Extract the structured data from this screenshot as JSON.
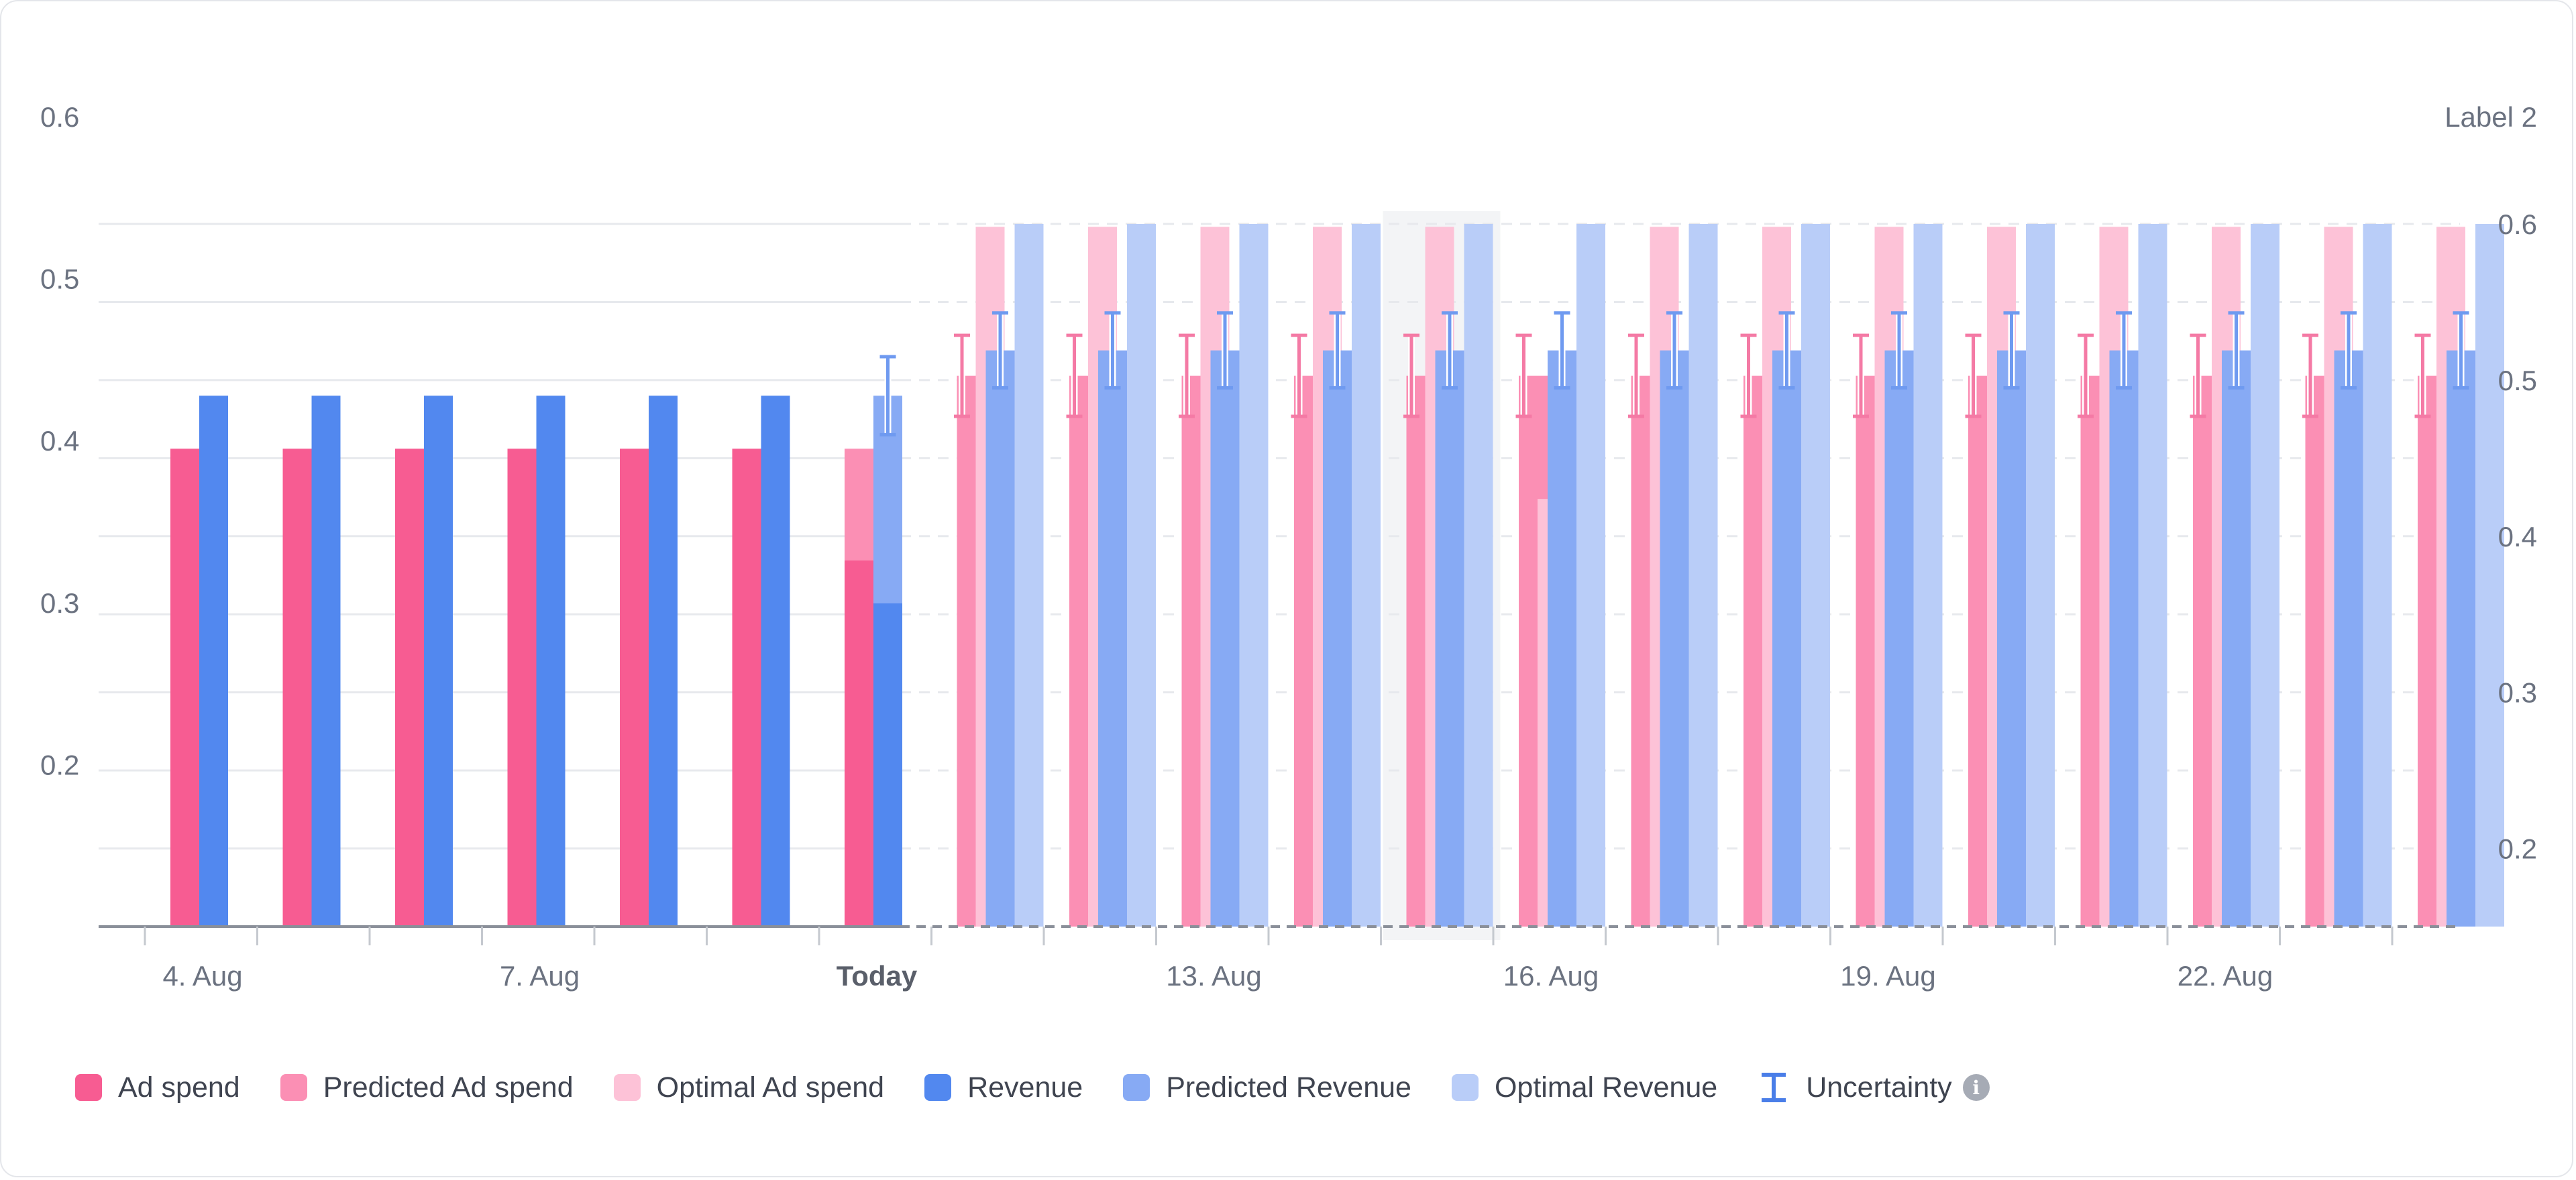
{
  "chart_data": {
    "type": "bar",
    "categories": [
      "4. Aug",
      "5. Aug",
      "6. Aug",
      "7. Aug",
      "8. Aug",
      "9. Aug",
      "Today",
      "11. Aug",
      "12. Aug",
      "13. Aug",
      "14. Aug",
      "15. Aug",
      "16. Aug",
      "17. Aug",
      "18. Aug",
      "19. Aug",
      "20. Aug",
      "21. Aug",
      "22. Aug",
      "23. Aug",
      "24. Aug"
    ],
    "x_tick_labels": [
      "4. Aug",
      "7. Aug",
      "Today",
      "13. Aug",
      "16. Aug",
      "19. Aug",
      "22. Aug"
    ],
    "today_index": 6,
    "highlight_index": 11,
    "y_left": {
      "ticks": [
        "0.6",
        "0.5",
        "0.4",
        "0.3",
        "0.2"
      ],
      "range": [
        0.1,
        0.6
      ]
    },
    "y_right": {
      "label": "Label 2",
      "ticks": [
        "0.6",
        "0.5",
        "0.4",
        "0.3",
        "0.2"
      ],
      "range": [
        0.15,
        0.6
      ]
    },
    "series": [
      {
        "name": "Ad spend",
        "axis": "left",
        "color": "#f75c92",
        "values": [
          0.395,
          0.395,
          0.395,
          0.395,
          0.395,
          0.395,
          0.326,
          null,
          null,
          null,
          null,
          null,
          null,
          null,
          null,
          null,
          null,
          null,
          null,
          null,
          null
        ]
      },
      {
        "name": "Predicted Ad spend",
        "axis": "left",
        "color": "#fb8fb4",
        "values": [
          null,
          null,
          null,
          null,
          null,
          null,
          0.395,
          0.44,
          0.44,
          0.44,
          0.44,
          0.44,
          0.44,
          0.44,
          0.44,
          0.44,
          0.44,
          0.44,
          0.44,
          0.44,
          0.44
        ],
        "uncertainty": [
          null,
          null,
          null,
          null,
          null,
          null,
          null,
          [
            0.415,
            0.465
          ],
          [
            0.415,
            0.465
          ],
          [
            0.415,
            0.465
          ],
          [
            0.415,
            0.465
          ],
          [
            0.415,
            0.465
          ],
          [
            0.415,
            0.465
          ],
          [
            0.415,
            0.465
          ],
          [
            0.415,
            0.465
          ],
          [
            0.415,
            0.465
          ],
          [
            0.415,
            0.465
          ],
          [
            0.415,
            0.465
          ],
          [
            0.415,
            0.465
          ],
          [
            0.415,
            0.465
          ],
          [
            0.415,
            0.465
          ]
        ]
      },
      {
        "name": "Optimal Ad spend",
        "axis": "left",
        "color": "#fdc2d7",
        "values": [
          null,
          null,
          null,
          null,
          null,
          null,
          null,
          0.532,
          0.532,
          0.532,
          0.532,
          0.532,
          0.364,
          0.532,
          0.532,
          0.532,
          0.532,
          0.532,
          0.532,
          0.532,
          0.532
        ]
      },
      {
        "name": "Revenue",
        "axis": "right",
        "color": "#5288ef",
        "values": [
          0.49,
          0.49,
          0.49,
          0.49,
          0.49,
          0.49,
          0.357,
          null,
          null,
          null,
          null,
          null,
          null,
          null,
          null,
          null,
          null,
          null,
          null,
          null,
          null
        ]
      },
      {
        "name": "Predicted Revenue",
        "axis": "right",
        "color": "#87aaf4",
        "values": [
          null,
          null,
          null,
          null,
          null,
          null,
          0.49,
          0.519,
          0.519,
          0.519,
          0.519,
          0.519,
          0.519,
          0.519,
          0.519,
          0.519,
          0.519,
          0.519,
          0.519,
          0.519,
          0.519
        ],
        "uncertainty": [
          null,
          null,
          null,
          null,
          null,
          null,
          [
            0.465,
            0.515
          ],
          [
            0.495,
            0.543
          ],
          [
            0.495,
            0.543
          ],
          [
            0.495,
            0.543
          ],
          [
            0.495,
            0.543
          ],
          [
            0.495,
            0.543
          ],
          [
            0.495,
            0.543
          ],
          [
            0.495,
            0.543
          ],
          [
            0.495,
            0.543
          ],
          [
            0.495,
            0.543
          ],
          [
            0.495,
            0.543
          ],
          [
            0.495,
            0.543
          ],
          [
            0.495,
            0.543
          ],
          [
            0.495,
            0.543
          ],
          [
            0.495,
            0.543
          ]
        ]
      },
      {
        "name": "Optimal Revenue",
        "axis": "right",
        "color": "#b9cdf8",
        "values": [
          null,
          null,
          null,
          null,
          null,
          null,
          null,
          0.6,
          0.6,
          0.6,
          0.6,
          0.6,
          0.6,
          0.6,
          0.6,
          0.6,
          0.6,
          0.6,
          0.6,
          0.6,
          0.6
        ]
      }
    ],
    "grid": true,
    "legend_position": "bottom"
  },
  "legend": {
    "items": [
      {
        "label": "Ad spend",
        "color": "#f75c92",
        "name": "legend-ad-spend"
      },
      {
        "label": "Predicted Ad spend",
        "color": "#fb8fb4",
        "name": "legend-predicted-ad-spend"
      },
      {
        "label": "Optimal Ad spend",
        "color": "#fdc2d7",
        "name": "legend-optimal-ad-spend"
      },
      {
        "label": "Revenue",
        "color": "#5288ef",
        "name": "legend-revenue"
      },
      {
        "label": "Predicted Revenue",
        "color": "#87aaf4",
        "name": "legend-predicted-revenue"
      },
      {
        "label": "Optimal Revenue",
        "color": "#b9cdf8",
        "name": "legend-optimal-revenue"
      }
    ],
    "uncertainty_label": "Uncertainty",
    "info_icon": "info-icon"
  }
}
